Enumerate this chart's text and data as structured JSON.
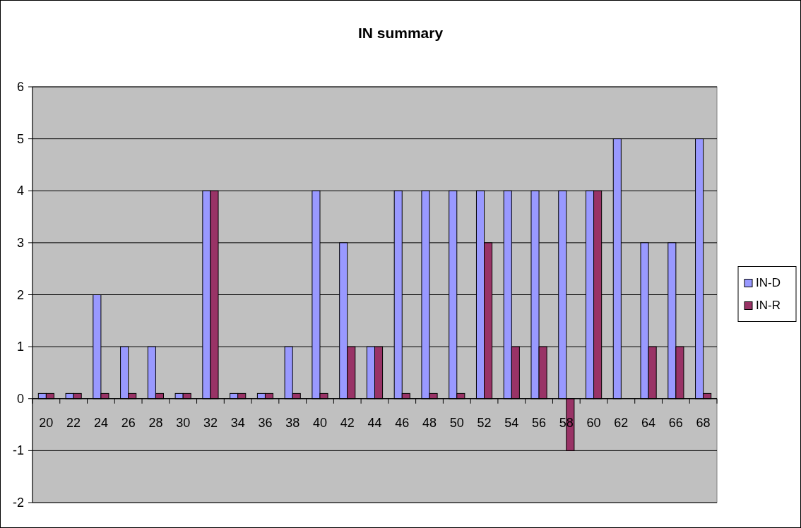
{
  "chart_data": {
    "type": "bar",
    "title": "IN summary",
    "categories": [
      "20",
      "22",
      "24",
      "26",
      "28",
      "30",
      "32",
      "34",
      "36",
      "38",
      "40",
      "42",
      "44",
      "46",
      "48",
      "50",
      "52",
      "54",
      "56",
      "58",
      "60",
      "62",
      "64",
      "66",
      "68"
    ],
    "series": [
      {
        "name": "IN-D",
        "color": "#9999ff",
        "values": [
          0.1,
          0.1,
          2,
          1,
          1,
          0.1,
          4,
          0.1,
          0.1,
          1,
          4,
          3,
          1,
          4,
          4,
          4,
          4,
          4,
          4,
          4,
          4,
          5,
          3,
          3,
          5
        ]
      },
      {
        "name": "IN-R",
        "color": "#993366",
        "values": [
          0.1,
          0.1,
          0.1,
          0.1,
          0.1,
          0.1,
          4,
          0.1,
          0.1,
          0.1,
          0.1,
          1,
          1,
          0.1,
          0.1,
          0.1,
          3,
          1,
          1,
          -1,
          4,
          0,
          1,
          1,
          0.1
        ]
      }
    ],
    "ylim": [
      -2,
      6
    ],
    "yticks": [
      -2,
      -1,
      0,
      1,
      2,
      3,
      4,
      5,
      6
    ],
    "grid": "y",
    "legend": "right"
  }
}
